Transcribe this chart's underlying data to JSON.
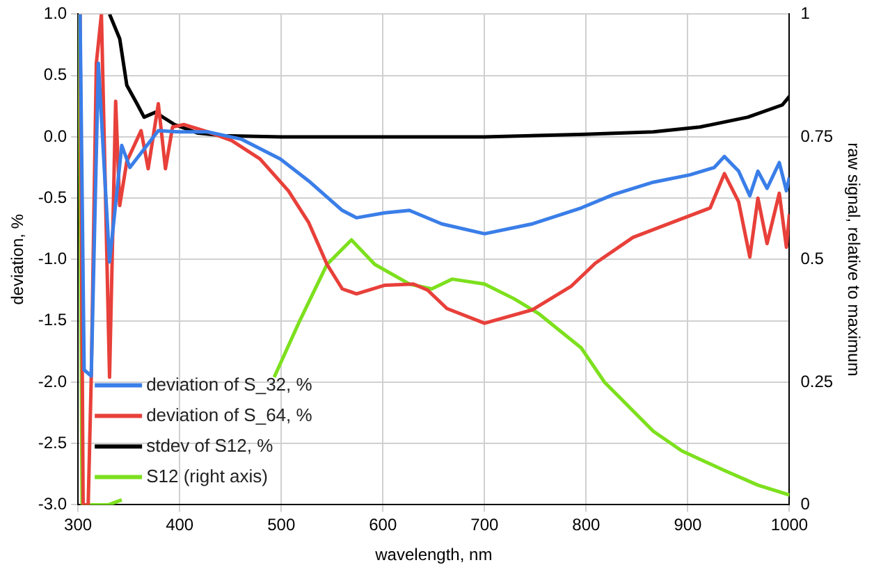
{
  "chart_data": {
    "type": "line",
    "xlabel": "wavelength, nm",
    "ylabel": "deviation, %",
    "y2label": "raw signal, relative to maximum",
    "xlim": [
      300,
      1000
    ],
    "xticks": [
      300,
      400,
      500,
      600,
      700,
      800,
      900,
      1000
    ],
    "ylim": [
      -3,
      1
    ],
    "yticks": [
      {
        "value": -3,
        "label": "-3.0"
      },
      {
        "value": -2.5,
        "label": "-2.5"
      },
      {
        "value": -2,
        "label": "-2.0"
      },
      {
        "value": -1.5,
        "label": "-1.5"
      },
      {
        "value": -1,
        "label": "-1.0"
      },
      {
        "value": -0.5,
        "label": "-0.5"
      },
      {
        "value": 0,
        "label": "0.0"
      },
      {
        "value": 0.5,
        "label": "0.5"
      },
      {
        "value": 1,
        "label": "1.0"
      }
    ],
    "y2lim": [
      0,
      1
    ],
    "y2ticks": [
      0,
      0.25,
      0.5,
      0.75,
      1
    ],
    "grid": true,
    "legend": "bottom left",
    "marker": "none",
    "line_style": "solid",
    "series": [
      {
        "name": "deviation of S_32, %",
        "color": "#3a7ee8",
        "x": [
          302,
          306,
          313,
          320,
          331,
          343,
          351,
          379,
          400,
          428,
          461,
          499,
          527,
          560,
          574,
          602,
          626,
          658,
          700,
          747,
          795,
          827,
          866,
          902,
          926,
          936,
          950,
          961,
          969,
          978,
          990,
          997,
          1000
        ],
        "values": [
          1,
          -1.9,
          -1.95,
          0.6,
          -1.02,
          -0.07,
          -0.25,
          0.05,
          0.04,
          0.04,
          -0.02,
          -0.18,
          -0.36,
          -0.6,
          -0.66,
          -0.62,
          -0.6,
          -0.71,
          -0.79,
          -0.71,
          -0.58,
          -0.47,
          -0.37,
          -0.31,
          -0.25,
          -0.16,
          -0.28,
          -0.48,
          -0.28,
          -0.42,
          -0.21,
          -0.44,
          -0.33
        ]
      },
      {
        "name": "deviation of S_64, %",
        "color": "#e8403a",
        "x": [
          302,
          305,
          310,
          313,
          318,
          323,
          331,
          337,
          341,
          348,
          362,
          369,
          379,
          386,
          393,
          404,
          428,
          451,
          479,
          507,
          527,
          545,
          560,
          574,
          602,
          630,
          644,
          663,
          700,
          747,
          785,
          809,
          846,
          884,
          922,
          936,
          950,
          961,
          969,
          978,
          990,
          997,
          1000
        ],
        "values": [
          1,
          -3,
          -3,
          -1.96,
          0.6,
          1,
          -1.96,
          0.29,
          -0.56,
          -0.2,
          0.05,
          -0.26,
          0.27,
          -0.26,
          0.08,
          0.1,
          0.04,
          -0.03,
          -0.18,
          -0.44,
          -0.7,
          -1.04,
          -1.24,
          -1.28,
          -1.21,
          -1.2,
          -1.25,
          -1.4,
          -1.52,
          -1.41,
          -1.22,
          -1.03,
          -0.82,
          -0.7,
          -0.58,
          -0.3,
          -0.53,
          -0.98,
          -0.5,
          -0.87,
          -0.46,
          -0.9,
          -0.63
        ]
      },
      {
        "name": "stdev of S12, %",
        "color": "#000000",
        "x": [
          331,
          341,
          348,
          358,
          365,
          376,
          395,
          418,
          442,
          500,
          600,
          700,
          799,
          866,
          912,
          959,
          993,
          1000
        ],
        "values": [
          1,
          0.8,
          0.42,
          0.27,
          0.16,
          0.2,
          0.1,
          0.03,
          0.01,
          0,
          0,
          0,
          0.02,
          0.04,
          0.08,
          0.16,
          0.26,
          0.33
        ]
      },
      {
        "name": "S12 (right axis)",
        "color": "#7de01e",
        "axis": "y2",
        "x": [
          301,
          304,
          310,
          320,
          330,
          343,
          345,
          493,
          517,
          545,
          569,
          592,
          626,
          648,
          668,
          700,
          729,
          753,
          795,
          818,
          866,
          894,
          936,
          969,
          1000
        ],
        "values": [
          1,
          0,
          0,
          0,
          0,
          0.01,
          null,
          0.26,
          0.37,
          0.49,
          0.54,
          0.49,
          0.45,
          0.44,
          0.46,
          0.45,
          0.42,
          0.39,
          0.32,
          0.25,
          0.15,
          0.11,
          0.07,
          0.04,
          0.02
        ]
      }
    ]
  }
}
